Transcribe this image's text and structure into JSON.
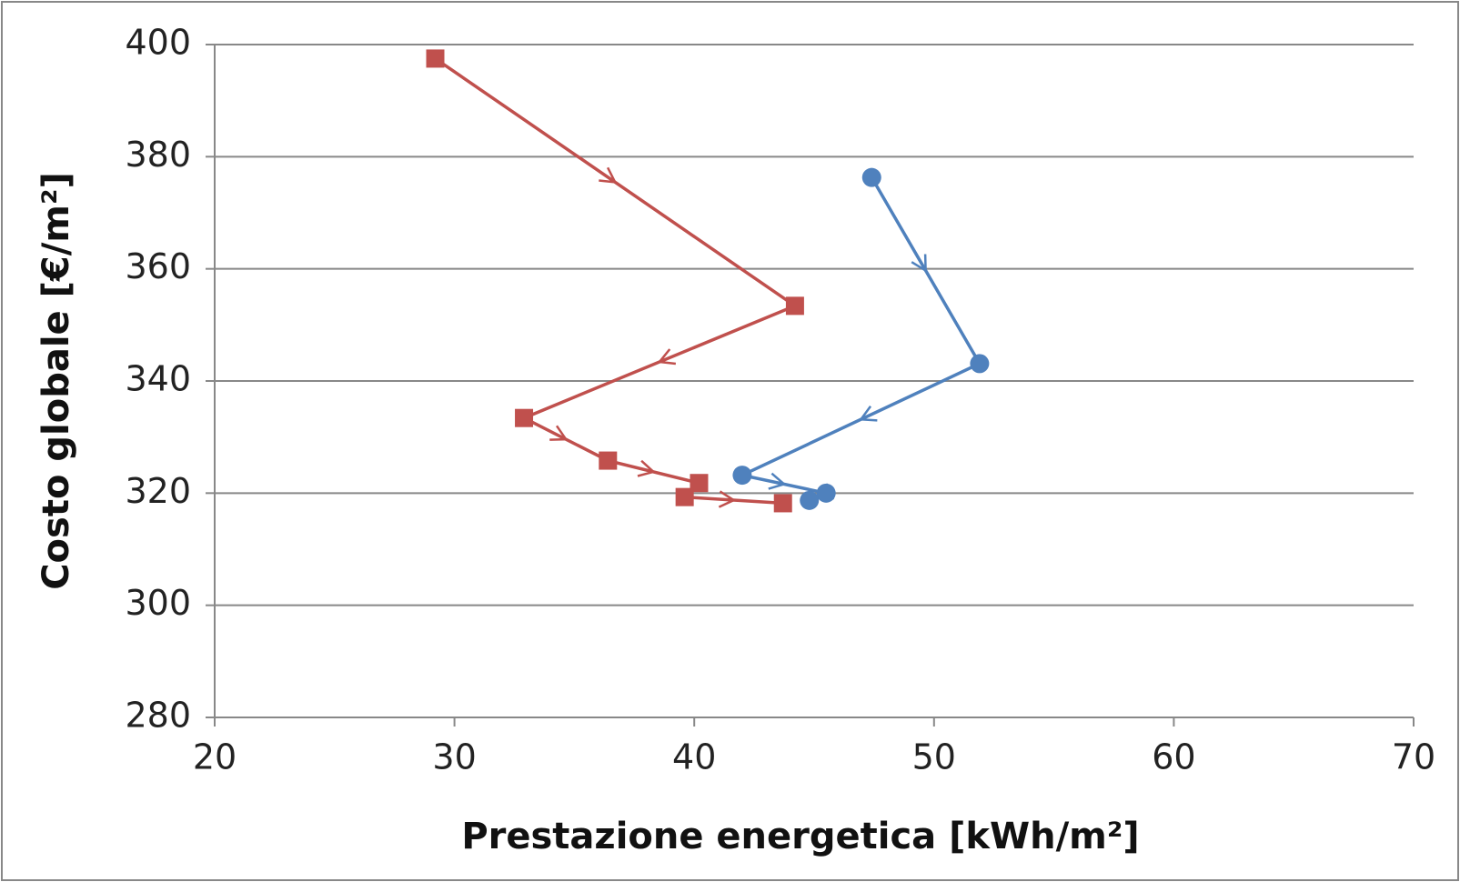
{
  "chart_data": {
    "type": "line",
    "xlabel": "Prestazione energetica  [kWh/m²]",
    "ylabel": "Costo globale [€/m²]",
    "xlim": [
      20,
      70
    ],
    "xticks": [
      20,
      30,
      40,
      50,
      60,
      70
    ],
    "ylim": [
      280,
      400
    ],
    "yticks": [
      280,
      300,
      320,
      340,
      360,
      380,
      400
    ],
    "grid": true,
    "series": [
      {
        "color": "#c0504d",
        "marker": "square",
        "x": [
          29.2,
          44.2,
          32.9,
          36.4,
          40.2,
          39.6,
          43.7
        ],
        "values": [
          397.5,
          353.4,
          333.4,
          325.8,
          321.8,
          319.3,
          318.2
        ]
      },
      {
        "color": "#4f81bd",
        "marker": "circle",
        "x": [
          47.4,
          51.9,
          42.0,
          45.5,
          44.8
        ],
        "values": [
          376.3,
          343.1,
          323.2,
          320.0,
          318.7
        ]
      }
    ]
  }
}
